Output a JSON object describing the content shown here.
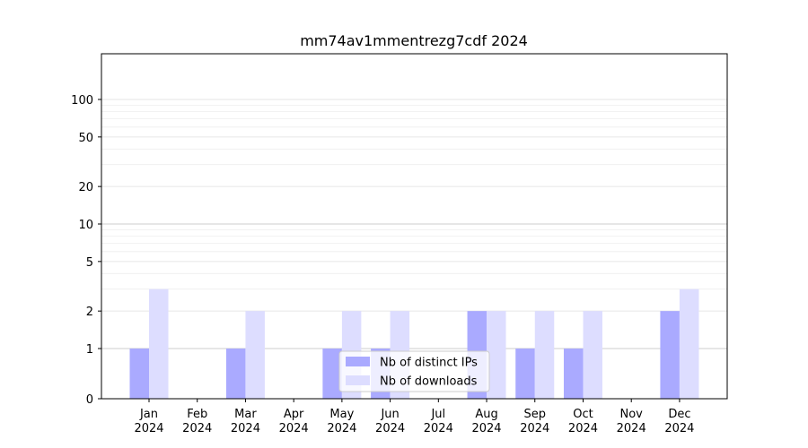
{
  "chart_data": {
    "type": "bar",
    "title": "mm74av1mmentrezg7cdf 2024",
    "xlabel": "",
    "ylabel": "",
    "y_scale": "symlog",
    "ylim": [
      0,
      120
    ],
    "grid": "horizontal",
    "legend_placement": "bottom-center",
    "categories": [
      {
        "month": "Jan",
        "year": "2024"
      },
      {
        "month": "Feb",
        "year": "2024"
      },
      {
        "month": "Mar",
        "year": "2024"
      },
      {
        "month": "Apr",
        "year": "2024"
      },
      {
        "month": "May",
        "year": "2024"
      },
      {
        "month": "Jun",
        "year": "2024"
      },
      {
        "month": "Jul",
        "year": "2024"
      },
      {
        "month": "Aug",
        "year": "2024"
      },
      {
        "month": "Sep",
        "year": "2024"
      },
      {
        "month": "Oct",
        "year": "2024"
      },
      {
        "month": "Nov",
        "year": "2024"
      },
      {
        "month": "Dec",
        "year": "2024"
      }
    ],
    "y_ticks": [
      0,
      1,
      2,
      5,
      10,
      20,
      50,
      100
    ],
    "series": [
      {
        "name": "Nb of distinct IPs",
        "color": "#aaaaff",
        "values": [
          1,
          0,
          1,
          0,
          1,
          1,
          0,
          2,
          1,
          1,
          0,
          2
        ]
      },
      {
        "name": "Nb of downloads",
        "color": "#ddddff",
        "values": [
          3,
          0,
          2,
          0,
          2,
          2,
          0,
          2,
          2,
          2,
          0,
          3
        ]
      }
    ]
  }
}
